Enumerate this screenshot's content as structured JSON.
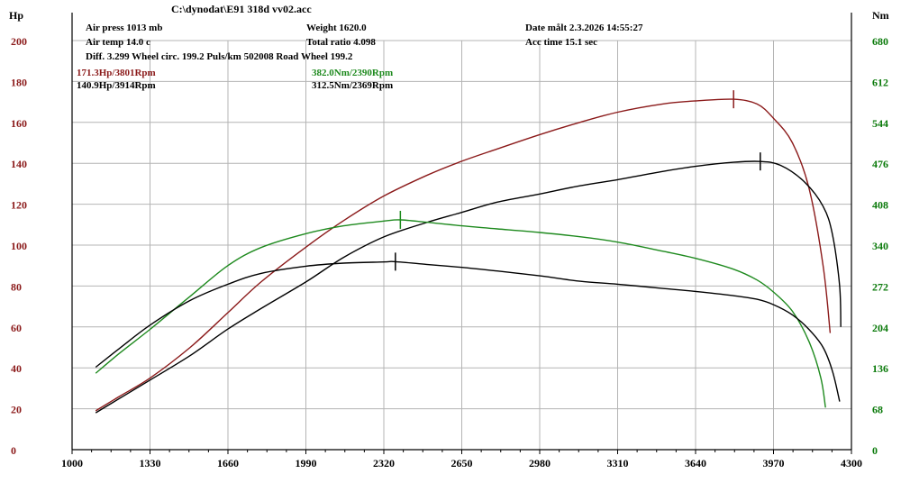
{
  "header": {
    "file": "C:\\dynodat\\E91 318d vv02.acc",
    "air_press": "Air press  1013 mb",
    "air_temp": "Air temp  14.0 c",
    "diff": "Diff.    3.299   Wheel circ. 199.2   Puls/km  502008   Road Wheel 199.2",
    "weight": "Weight   1620.0",
    "total_ratio": "Total ratio 4.098",
    "date": "Date målt 2.3.2026 14:55:27",
    "acc_time": "Acc time   15.1 sec"
  },
  "peaks": {
    "hp_red": "171.3Hp/3801Rpm",
    "hp_black": "140.9Hp/3914Rpm",
    "nm_green": "382.0Nm/2390Rpm",
    "nm_black": "312.5Nm/2369Rpm"
  },
  "colors": {
    "red": "#8b1a1a",
    "green": "#1e8a1e",
    "black": "#000000",
    "left_axis": "#8b1a1a",
    "right_axis": "#0a7a0a",
    "grid": "#b4b4b4"
  },
  "chart_data": {
    "type": "line",
    "xlabel": "",
    "x_range": [
      1000,
      4300
    ],
    "x_ticks": [
      "1000",
      "1330",
      "1660",
      "1990",
      "2320",
      "2650",
      "2980",
      "3310",
      "3640",
      "3970",
      "4300"
    ],
    "left_axis": {
      "unit": "Hp",
      "range": [
        0,
        200
      ],
      "ticks": [
        "0",
        "20",
        "40",
        "60",
        "80",
        "100",
        "120",
        "140",
        "160",
        "180",
        "200"
      ]
    },
    "right_axis": {
      "unit": "Nm",
      "range": [
        0,
        680
      ],
      "ticks": [
        "0",
        "68",
        "136",
        "204",
        "272",
        "340",
        "408",
        "476",
        "544",
        "612",
        "680"
      ]
    },
    "grid": true,
    "series": [
      {
        "key": "hp_red",
        "axis": "left",
        "color": "red",
        "points": [
          [
            1100,
            19
          ],
          [
            1200,
            26
          ],
          [
            1330,
            35
          ],
          [
            1500,
            50
          ],
          [
            1660,
            67
          ],
          [
            1800,
            82
          ],
          [
            1990,
            99
          ],
          [
            2150,
            112
          ],
          [
            2320,
            124
          ],
          [
            2500,
            134
          ],
          [
            2650,
            141
          ],
          [
            2800,
            147
          ],
          [
            2980,
            154
          ],
          [
            3150,
            160
          ],
          [
            3310,
            165
          ],
          [
            3500,
            169
          ],
          [
            3640,
            170.5
          ],
          [
            3800,
            171.3
          ],
          [
            3900,
            169
          ],
          [
            3970,
            162
          ],
          [
            4050,
            150
          ],
          [
            4120,
            128
          ],
          [
            4180,
            90
          ],
          [
            4210,
            57
          ]
        ],
        "peak": [
          3801,
          171.3
        ]
      },
      {
        "key": "hp_black",
        "axis": "left",
        "color": "black",
        "points": [
          [
            1100,
            18
          ],
          [
            1200,
            25
          ],
          [
            1330,
            34
          ],
          [
            1500,
            46
          ],
          [
            1660,
            59
          ],
          [
            1800,
            69
          ],
          [
            1990,
            82
          ],
          [
            2150,
            94
          ],
          [
            2320,
            104
          ],
          [
            2500,
            111
          ],
          [
            2650,
            116
          ],
          [
            2800,
            121
          ],
          [
            2980,
            125
          ],
          [
            3150,
            129
          ],
          [
            3310,
            132
          ],
          [
            3500,
            136
          ],
          [
            3640,
            138.5
          ],
          [
            3800,
            140.5
          ],
          [
            3914,
            140.9
          ],
          [
            4000,
            139
          ],
          [
            4100,
            131
          ],
          [
            4180,
            119
          ],
          [
            4220,
            105
          ],
          [
            4250,
            80
          ],
          [
            4255,
            60
          ]
        ],
        "peak": [
          3914,
          140.9
        ]
      },
      {
        "key": "nm_green",
        "axis": "right",
        "color": "green",
        "points": [
          [
            1100,
            127
          ],
          [
            1200,
            160
          ],
          [
            1330,
            200
          ],
          [
            1500,
            255
          ],
          [
            1660,
            306
          ],
          [
            1800,
            336
          ],
          [
            1990,
            359
          ],
          [
            2150,
            372
          ],
          [
            2320,
            380
          ],
          [
            2390,
            382
          ],
          [
            2500,
            378
          ],
          [
            2650,
            372
          ],
          [
            2800,
            367
          ],
          [
            2980,
            361
          ],
          [
            3150,
            354
          ],
          [
            3310,
            345
          ],
          [
            3500,
            330
          ],
          [
            3640,
            318
          ],
          [
            3800,
            300
          ],
          [
            3900,
            282
          ],
          [
            3970,
            262
          ],
          [
            4050,
            230
          ],
          [
            4120,
            180
          ],
          [
            4170,
            120
          ],
          [
            4190,
            70
          ]
        ],
        "peak": [
          2390,
          382.0
        ]
      },
      {
        "key": "nm_black",
        "axis": "right",
        "color": "black",
        "points": [
          [
            1100,
            137
          ],
          [
            1200,
            168
          ],
          [
            1330,
            207
          ],
          [
            1500,
            248
          ],
          [
            1660,
            275
          ],
          [
            1800,
            293
          ],
          [
            1990,
            305
          ],
          [
            2150,
            310
          ],
          [
            2320,
            312
          ],
          [
            2369,
            312.5
          ],
          [
            2500,
            308
          ],
          [
            2650,
            303
          ],
          [
            2800,
            297
          ],
          [
            2980,
            289
          ],
          [
            3150,
            280
          ],
          [
            3310,
            275
          ],
          [
            3500,
            268
          ],
          [
            3640,
            263
          ],
          [
            3800,
            256
          ],
          [
            3900,
            250
          ],
          [
            3970,
            241
          ],
          [
            4050,
            224
          ],
          [
            4120,
            200
          ],
          [
            4180,
            170
          ],
          [
            4220,
            130
          ],
          [
            4250,
            80
          ]
        ],
        "peak": [
          2369,
          312.5
        ]
      }
    ]
  }
}
